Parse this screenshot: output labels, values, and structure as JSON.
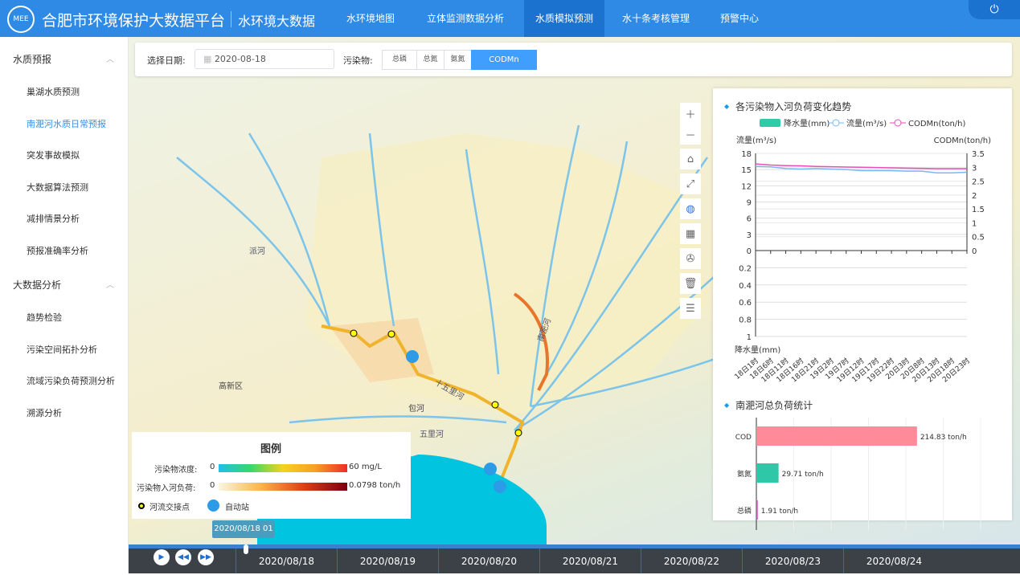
{
  "header": {
    "title": "合肥市环境保护大数据平台",
    "subtitle": "水环境大数据",
    "logo_text": "MEE",
    "nav": [
      {
        "label": "水环境地图"
      },
      {
        "label": "立体监测数据分析"
      },
      {
        "label": "水质模拟预测",
        "active": true
      },
      {
        "label": "水十条考核管理"
      },
      {
        "label": "预警中心"
      }
    ],
    "power_icon": "power-icon"
  },
  "sidebar": {
    "groups": [
      {
        "label": "水质预报",
        "items": [
          "巢湖水质预测",
          "南淝河水质日常预报",
          "突发事故模拟",
          "大数据算法预测",
          "减排情景分析",
          "预报准确率分析"
        ]
      },
      {
        "label": "大数据分析",
        "items": [
          "趋势检验",
          "污染空间拓扑分析",
          "流域污染负荷预测分析",
          "溯源分析"
        ]
      }
    ],
    "active_item": "南淝河水质日常预报"
  },
  "filter": {
    "date_label": "选择日期:",
    "date_value": "2020-08-18",
    "pollutant_label": "污染物:",
    "pollutants": [
      "总磷",
      "总氮",
      "氨氮",
      "CODMn"
    ],
    "selected": "CODMn"
  },
  "map": {
    "labels": [
      "高新区",
      "包河",
      "五里河",
      "十五里河",
      "派河",
      "南淝河"
    ],
    "tools": [
      "zoom-in",
      "zoom-out",
      "home",
      "fullscreen",
      "globe",
      "table",
      "fan",
      "trash",
      "report"
    ]
  },
  "legend": {
    "title": "图例",
    "conc_label": "污染物浓度:",
    "conc_min": "0",
    "conc_max": "60 mg/L",
    "load_label": "污染物入河负荷:",
    "load_min": "0",
    "load_max": "0.0798 ton/h",
    "junction": "河流交接点",
    "station": "自动站"
  },
  "timeline": {
    "tooltip": "2020/08/18 01",
    "days": [
      "2020/08/18",
      "2020/08/19",
      "2020/08/20",
      "2020/08/21",
      "2020/08/22",
      "2020/08/23",
      "2020/08/24"
    ],
    "progress": 0.02
  },
  "chart_data": [
    {
      "type": "line",
      "title": "各污染物入河负荷变化趋势",
      "legend": [
        "降水量(mm)",
        "流量(m³/s)",
        "CODMn(ton/h)"
      ],
      "ylabel_left": "流量(m³/s)",
      "ylabel_right": "CODMn(ton/h)",
      "ylabel_bottom": "降水量(mm)",
      "yticks_left": [
        "18",
        "15",
        "12",
        "9",
        "6",
        "3",
        "0"
      ],
      "yticks_right": [
        "3.5",
        "3",
        "2.5",
        "2",
        "1.5",
        "1",
        "0.5",
        "0"
      ],
      "yticks_bottom": [
        "0",
        "0.2",
        "0.4",
        "0.6",
        "0.8",
        "1"
      ],
      "ylim_left": [
        0,
        18
      ],
      "ylim_right": [
        0,
        3.5
      ],
      "ylim_bottom": [
        0,
        1
      ],
      "x": [
        "18日1时",
        "18日6时",
        "18日11时",
        "18日16时",
        "18日21时",
        "19日2时",
        "19日7时",
        "19日12时",
        "19日17时",
        "19日22时",
        "20日3时",
        "20日8时",
        "20日13时",
        "20日18时",
        "20日23时"
      ],
      "series": [
        {
          "name": "流量(m³/s)",
          "color": "#7ab8f5",
          "values": [
            15.6,
            15.5,
            15.2,
            15.1,
            15.2,
            15.1,
            15.0,
            14.8,
            14.8,
            14.8,
            14.7,
            14.7,
            14.4,
            14.4,
            14.5
          ]
        },
        {
          "name": "CODMn(ton/h)",
          "color": "#e64fb8",
          "values": [
            3.12,
            3.08,
            3.06,
            3.05,
            3.03,
            3.02,
            3.01,
            3.0,
            2.99,
            2.98,
            2.97,
            2.96,
            2.95,
            2.95,
            2.95
          ]
        },
        {
          "name": "降水量(mm)",
          "color": "#2ecba8",
          "values": [
            0,
            0,
            0,
            0,
            0,
            0,
            0,
            0,
            0,
            0,
            0,
            0,
            0,
            0,
            0
          ]
        }
      ]
    },
    {
      "type": "bar",
      "title": "南淝河总负荷统计",
      "categories": [
        "COD",
        "氨氮",
        "总磷"
      ],
      "values": [
        214.83,
        29.71,
        1.91
      ],
      "unit": "ton/h",
      "labels": [
        "214.83 ton/h",
        "29.71 ton/h",
        "1.91 ton/h"
      ],
      "colors": [
        "#fe8a9a",
        "#2ec8a8",
        "#e64fb8"
      ],
      "xlim": [
        0,
        350
      ]
    }
  ]
}
